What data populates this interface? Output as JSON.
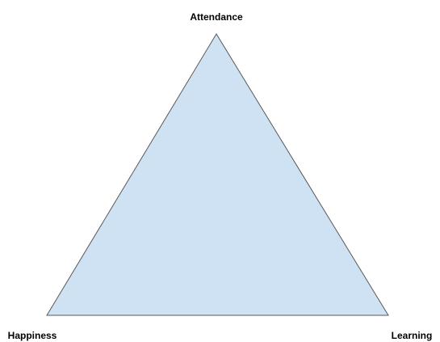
{
  "nodes": [
    {
      "label": "Attendance"
    },
    {
      "label": "Happiness"
    },
    {
      "label": "Learning"
    }
  ]
}
